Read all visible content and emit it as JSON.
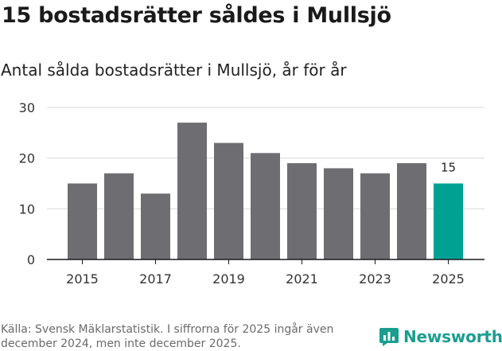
{
  "header": {
    "title": "15 bostadsrätter såldes i Mullsjö",
    "subtitle": "Antal sålda bostadsrätter i Mullsjö, år för år"
  },
  "footer": {
    "source": "Källa: Svensk Mäklarstatistik. I siffrorna för 2025 ingår även december 2024, men inte december 2025.",
    "logo_text": "Newsworthy"
  },
  "colors": {
    "bar": "#6e6d72",
    "highlight": "#00a095",
    "grid": "#d9d9d9",
    "axis": "#1a1a1a",
    "brand": "#1a9e8f"
  },
  "chart_data": {
    "type": "bar",
    "title": "Antal sålda bostadsrätter i Mullsjö, år för år",
    "xlabel": "",
    "ylabel": "",
    "categories": [
      "2015",
      "2016",
      "2017",
      "2018",
      "2019",
      "2020",
      "2021",
      "2022",
      "2023",
      "2024",
      "2025"
    ],
    "values": [
      15,
      17,
      13,
      27,
      23,
      21,
      19,
      18,
      17,
      19,
      15
    ],
    "x_tick_labels": [
      "2015",
      "2017",
      "2019",
      "2021",
      "2023",
      "2025"
    ],
    "y_ticks": [
      0,
      10,
      20,
      30
    ],
    "ylim": [
      0,
      30
    ],
    "grid": true,
    "highlight_index": 10,
    "data_labels": [
      {
        "index": 10,
        "text": "15"
      }
    ]
  }
}
